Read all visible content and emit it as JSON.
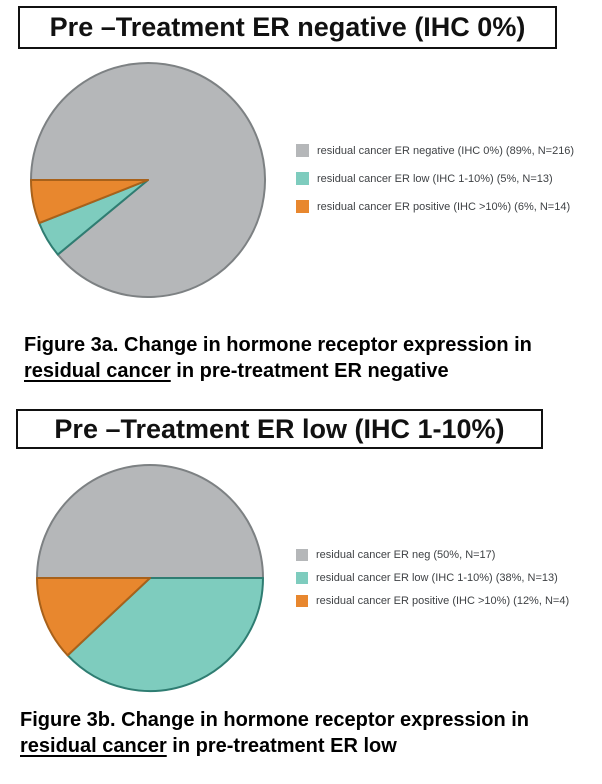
{
  "figures": [
    {
      "title": "Pre –Treatment ER negative (IHC 0%)",
      "caption": {
        "line1": "Figure 3a. Change in hormone receptor expression in",
        "line2_underlined": "residual cancer",
        "line2_rest": " in pre-treatment ER negative"
      }
    },
    {
      "title": "Pre –Treatment ER low (IHC 1-10%)",
      "caption": {
        "line1": "Figure 3b. Change in hormone receptor expression in",
        "line2_underlined": "residual cancer",
        "line2_rest": " in pre-treatment ER low"
      }
    }
  ],
  "chart_data": [
    {
      "type": "pie",
      "title": "Pre –Treatment ER negative (IHC 0%)",
      "start_angle_deg_from_top_cw": 270,
      "direction": "clockwise",
      "legend_position": "right",
      "slices": [
        {
          "label": "residual cancer ER negative (IHC 0%) (89%, N=216)",
          "value_pct": 89,
          "n": 216,
          "color": "#b5b7b9",
          "stroke": "#7d8183"
        },
        {
          "label": "residual cancer ER low (IHC 1-10%) (5%, N=13)",
          "value_pct": 5,
          "n": 13,
          "color": "#7eccbe",
          "stroke": "#2f7d72"
        },
        {
          "label": "residual cancer ER positive (IHC >10%) (6%, N=14)",
          "value_pct": 6,
          "n": 14,
          "color": "#e8872e",
          "stroke": "#a8611a"
        }
      ]
    },
    {
      "type": "pie",
      "title": "Pre –Treatment ER low (IHC 1-10%)",
      "start_angle_deg_from_top_cw": 270,
      "direction": "clockwise",
      "legend_position": "right",
      "slices": [
        {
          "label": "residual cancer ER neg (50%, N=17)",
          "value_pct": 50,
          "n": 17,
          "color": "#b5b7b9",
          "stroke": "#7d8183"
        },
        {
          "label": "residual cancer ER low (IHC 1-10%) (38%, N=13)",
          "value_pct": 38,
          "n": 13,
          "color": "#7eccbe",
          "stroke": "#2f7d72"
        },
        {
          "label": "residual cancer ER positive (IHC >10%) (12%, N=4)",
          "value_pct": 12,
          "n": 4,
          "color": "#e8872e",
          "stroke": "#a8611a"
        }
      ]
    }
  ]
}
